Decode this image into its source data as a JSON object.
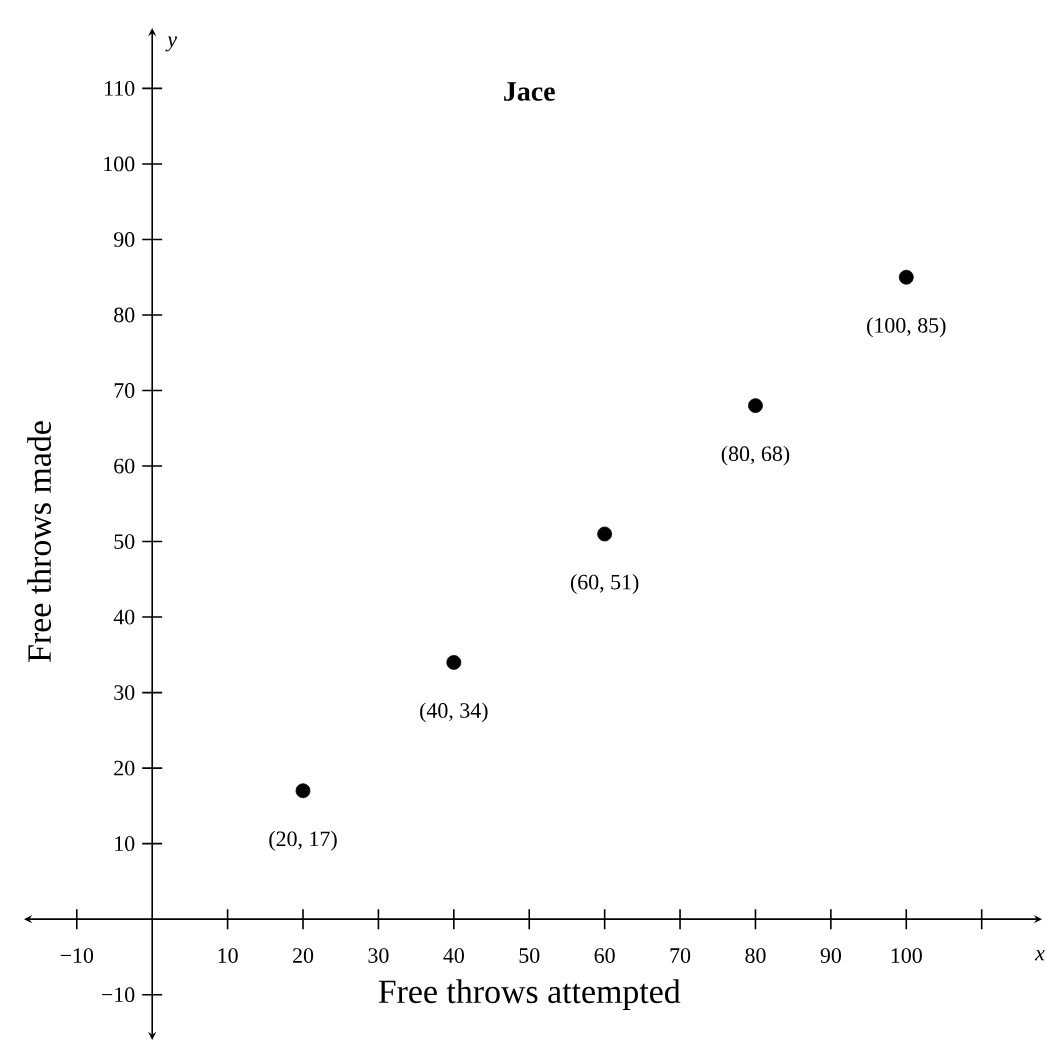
{
  "chart_data": {
    "type": "scatter",
    "title": "Jace",
    "xlabel": "Free throws attempted",
    "ylabel": "Free throws made",
    "x": [
      20,
      40,
      60,
      80,
      100
    ],
    "values": [
      17,
      34,
      51,
      68,
      85
    ],
    "color": "#000000",
    "marker": "circle",
    "value_labels": [
      "(20, 17)",
      "(40, 34)",
      "(60, 51)",
      "(80, 68)",
      "(100, 85)"
    ],
    "xlim": [
      -17,
      118
    ],
    "ylim": [
      -16,
      118
    ],
    "xticks": [
      {
        "value": -10,
        "label": "−10"
      },
      10,
      20,
      30,
      40,
      50,
      60,
      70,
      80,
      90,
      100,
      {
        "value": 110,
        "label": null
      }
    ],
    "yticks": [
      {
        "value": -10,
        "label": "−10"
      },
      10,
      20,
      30,
      40,
      50,
      60,
      70,
      80,
      90,
      100,
      110
    ],
    "annotations": [
      "x",
      "y"
    ],
    "grid": false
  }
}
